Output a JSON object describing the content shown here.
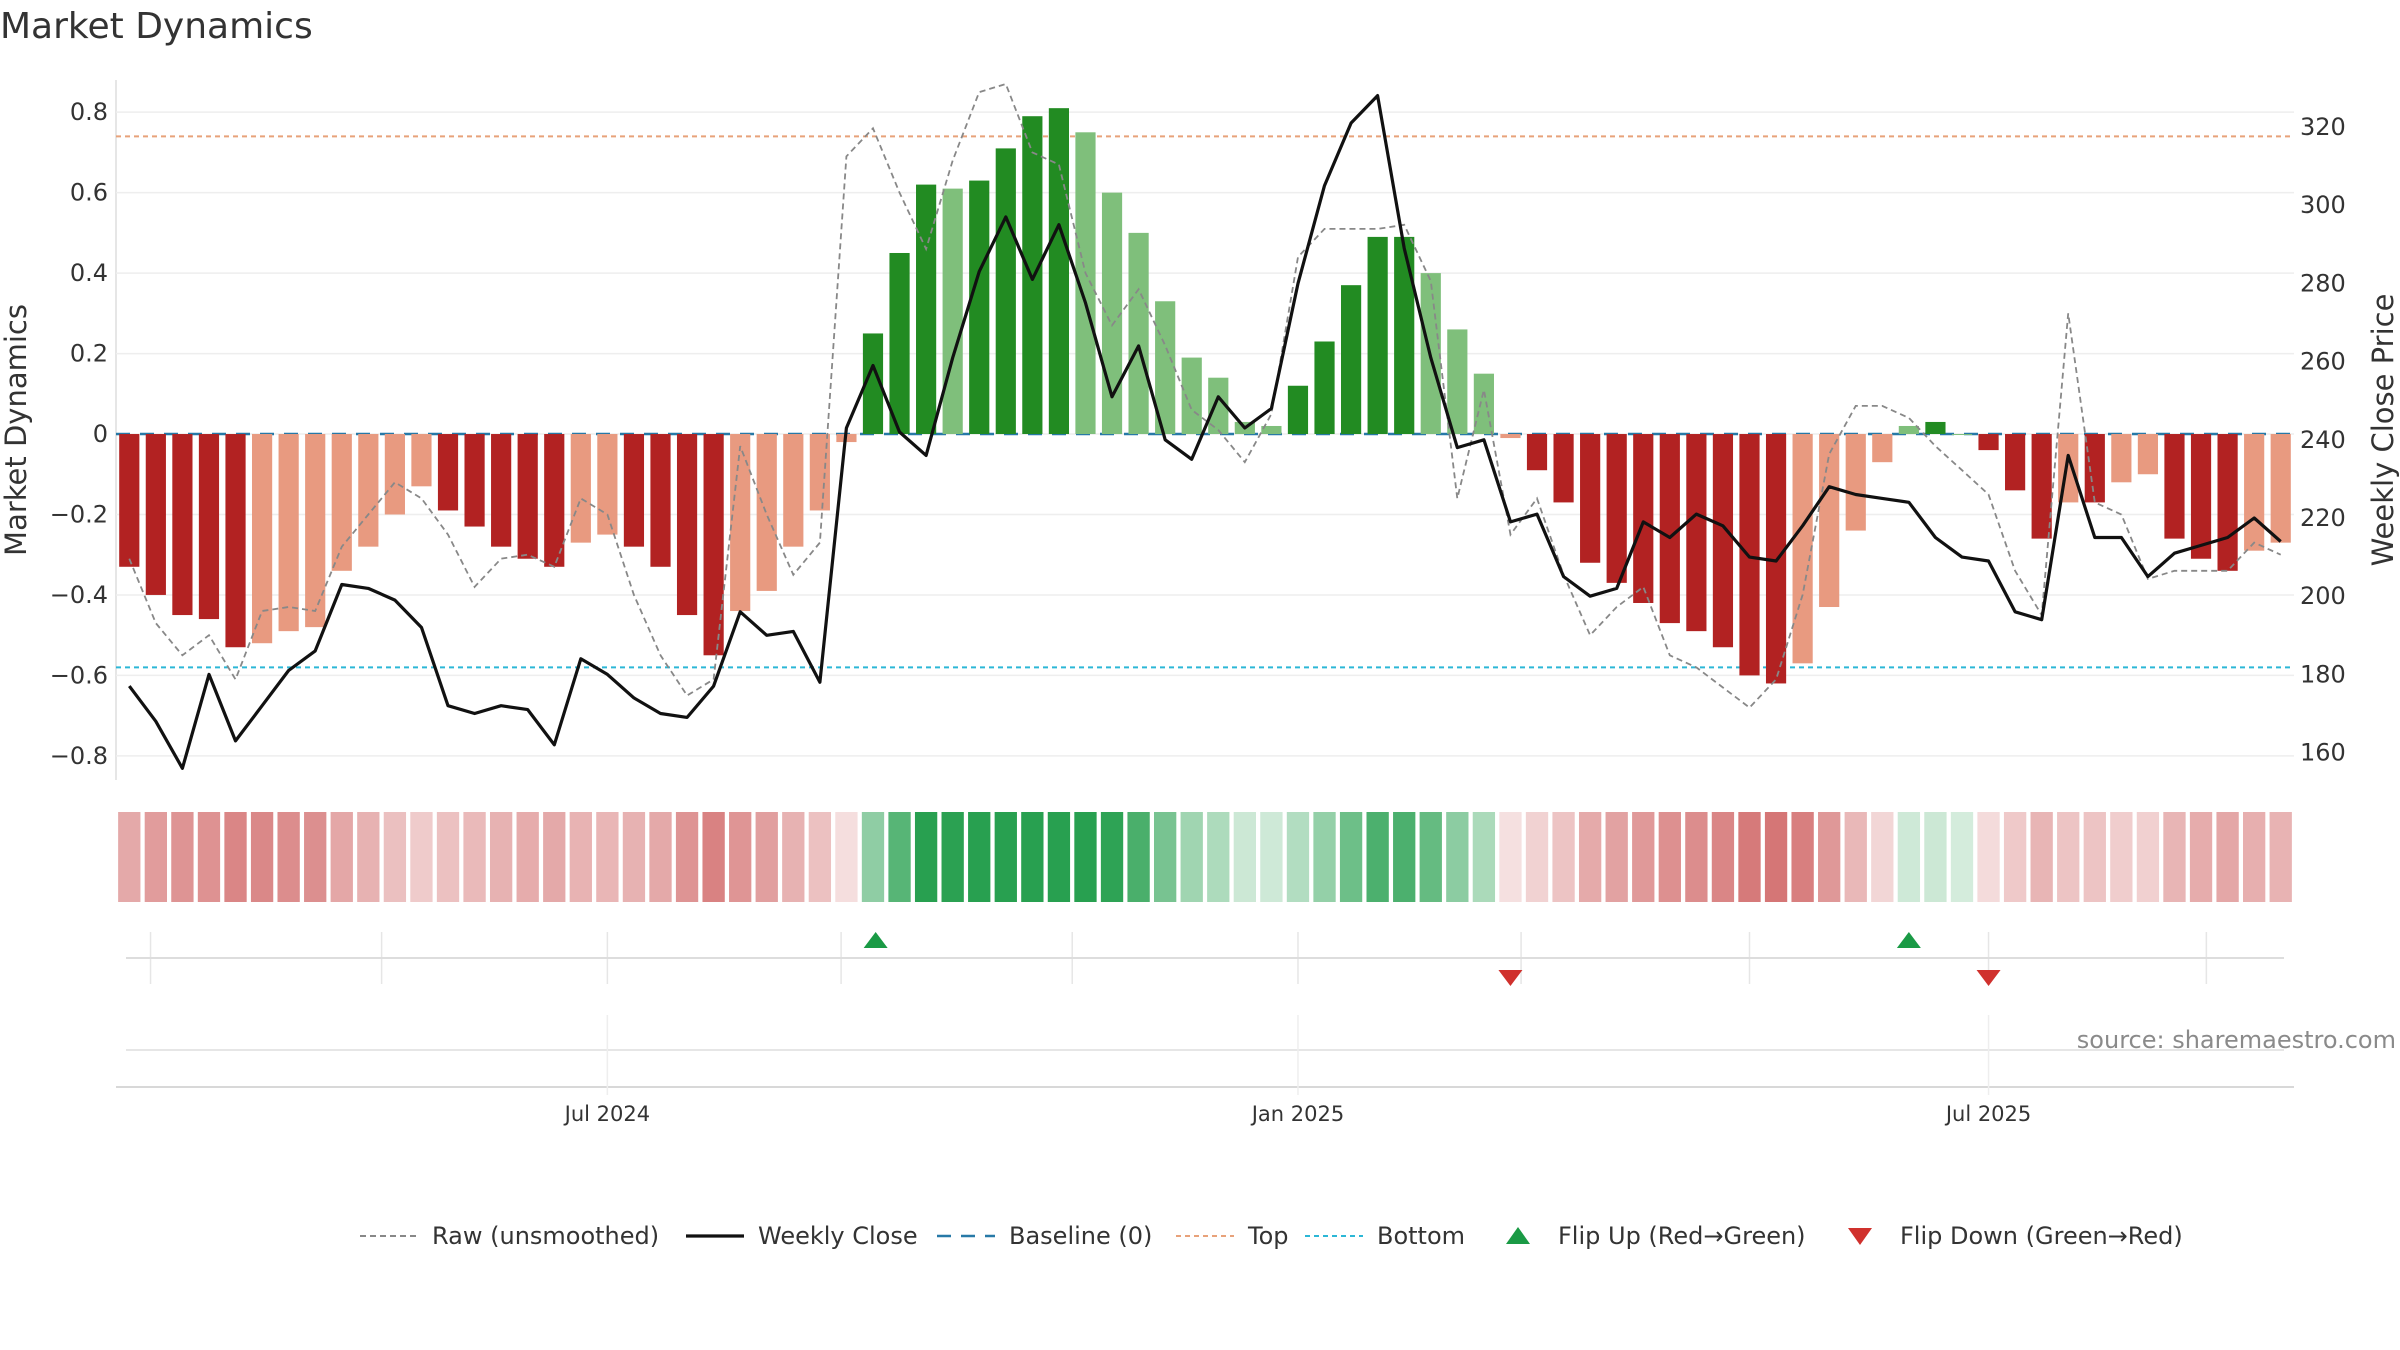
{
  "chart_data": {
    "type": "bar",
    "title": "Market Dynamics",
    "ylabel": "Market Dynamics",
    "y2label": "Weekly Close Price",
    "ylim": [
      -0.86,
      0.88
    ],
    "y2lim": [
      153,
      332
    ],
    "yticks": [
      {
        "value": 0.8,
        "label": "0.8"
      },
      {
        "value": 0.6,
        "label": "0.6"
      },
      {
        "value": 0.4,
        "label": "0.4"
      },
      {
        "value": 0.2,
        "label": "0.2"
      },
      {
        "value": 0.0,
        "label": "0"
      },
      {
        "value": -0.2,
        "label": "−0.2"
      },
      {
        "value": -0.4,
        "label": "−0.4"
      },
      {
        "value": -0.6,
        "label": "−0.6"
      },
      {
        "value": -0.8,
        "label": "−0.8"
      }
    ],
    "y2ticks": [
      {
        "value": 320,
        "label": "320"
      },
      {
        "value": 300,
        "label": "300"
      },
      {
        "value": 280,
        "label": "280"
      },
      {
        "value": 260,
        "label": "260"
      },
      {
        "value": 240,
        "label": "240"
      },
      {
        "value": 220,
        "label": "220"
      },
      {
        "value": 200,
        "label": "200"
      },
      {
        "value": 180,
        "label": "180"
      },
      {
        "value": 160,
        "label": "160"
      }
    ],
    "xticks": [
      {
        "week": 18,
        "label": "Jul 2024"
      },
      {
        "week": 44,
        "label": "Jan 2025"
      },
      {
        "week": 70,
        "label": "Jul 2025"
      }
    ],
    "minor_xticks": [
      0.8,
      9.5,
      18,
      26.8,
      35.5,
      44,
      52.4,
      61,
      70,
      78.2
    ],
    "week_count": 82,
    "top_level": 0.74,
    "bottom_level": -0.58,
    "baseline": 0,
    "dynamics": [
      -0.33,
      -0.4,
      -0.45,
      -0.46,
      -0.53,
      -0.52,
      -0.49,
      -0.48,
      -0.34,
      -0.28,
      -0.2,
      -0.13,
      -0.19,
      -0.23,
      -0.28,
      -0.31,
      -0.33,
      -0.27,
      -0.25,
      -0.28,
      -0.33,
      -0.45,
      -0.55,
      -0.44,
      -0.39,
      -0.28,
      -0.19,
      -0.02,
      0.25,
      0.45,
      0.62,
      0.61,
      0.63,
      0.71,
      0.79,
      0.81,
      0.75,
      0.6,
      0.5,
      0.33,
      0.19,
      0.14,
      0.03,
      0.02,
      0.12,
      0.23,
      0.37,
      0.49,
      0.49,
      0.4,
      0.26,
      0.15,
      -0.01,
      -0.09,
      -0.17,
      -0.32,
      -0.37,
      -0.42,
      -0.47,
      -0.49,
      -0.53,
      -0.6,
      -0.62,
      -0.57,
      -0.43,
      -0.24,
      -0.07,
      0.02,
      0.03,
      0.0,
      -0.04,
      -0.14,
      -0.26,
      -0.17,
      -0.17,
      -0.12,
      -0.1,
      -0.26,
      -0.31,
      -0.34,
      -0.29,
      -0.27
    ],
    "raw": [
      -0.31,
      -0.47,
      -0.55,
      -0.5,
      -0.61,
      -0.44,
      -0.43,
      -0.44,
      -0.28,
      -0.2,
      -0.12,
      -0.16,
      -0.25,
      -0.38,
      -0.31,
      -0.3,
      -0.33,
      -0.16,
      -0.2,
      -0.4,
      -0.55,
      -0.65,
      -0.61,
      -0.03,
      -0.2,
      -0.35,
      -0.27,
      0.69,
      0.76,
      0.6,
      0.46,
      0.68,
      0.85,
      0.87,
      0.7,
      0.67,
      0.4,
      0.27,
      0.36,
      0.22,
      0.06,
      0.01,
      -0.07,
      0.05,
      0.44,
      0.51,
      0.51,
      0.51,
      0.52,
      0.38,
      -0.16,
      0.11,
      -0.25,
      -0.16,
      -0.35,
      -0.5,
      -0.43,
      -0.38,
      -0.55,
      -0.58,
      -0.63,
      -0.68,
      -0.61,
      -0.4,
      -0.05,
      0.07,
      0.07,
      0.04,
      -0.03,
      -0.09,
      -0.15,
      -0.34,
      -0.45,
      0.3,
      -0.17,
      -0.2,
      -0.36,
      -0.34,
      -0.34,
      -0.34,
      -0.27,
      -0.3
    ],
    "weekly_close": [
      177,
      168,
      156,
      180,
      163,
      172,
      181,
      186,
      203,
      202,
      199,
      192,
      172,
      170,
      172,
      171,
      162,
      184,
      180,
      174,
      170,
      169,
      177,
      196,
      190,
      191,
      178,
      243,
      259,
      242,
      236,
      261,
      283,
      297,
      281,
      295,
      275,
      251,
      264,
      240,
      235,
      251,
      243,
      248,
      280,
      305,
      321,
      328,
      289,
      261,
      238,
      240,
      219,
      221,
      205,
      200,
      202,
      219,
      215,
      221,
      218,
      210,
      209,
      218,
      228,
      226,
      225,
      224,
      215,
      210,
      209,
      196,
      194,
      236,
      215,
      215,
      205,
      211,
      213,
      215,
      220,
      214
    ],
    "flip_up_weeks": [
      28.1,
      67
    ],
    "flip_down_weeks": [
      52,
      70
    ],
    "series": [
      {
        "name": "Raw (unsmoothed)",
        "color": "#888888"
      },
      {
        "name": "Weekly Close",
        "color": "#111111"
      },
      {
        "name": "Baseline (0)",
        "color": "#2779a7"
      },
      {
        "name": "Top",
        "color": "#e8a27a"
      },
      {
        "name": "Bottom",
        "color": "#2cb7d6"
      },
      {
        "name": "Flip Up (Red→Green)",
        "color": "#1a9a45"
      },
      {
        "name": "Flip Down (Green→Red)",
        "color": "#d0312d"
      }
    ],
    "colors": {
      "strong_red": "#b22222",
      "light_red": "#e89a80",
      "strong_green": "#228b22",
      "light_green": "#7fbf7b"
    },
    "legend_position": "bottom-center"
  },
  "source": "source: sharemaestro.com"
}
